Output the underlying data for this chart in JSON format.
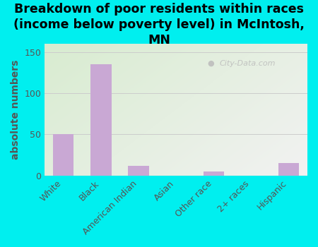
{
  "categories": [
    "White",
    "Black",
    "American Indian",
    "Asian",
    "Other race",
    "2+ races",
    "Hispanic"
  ],
  "values": [
    50,
    135,
    12,
    0,
    5,
    0,
    15
  ],
  "bar_color": "#c9a8d4",
  "background_color": "#00efef",
  "plot_bg_top_left": "#d8ecd0",
  "plot_bg_bottom_right": "#f0f0f0",
  "title": "Breakdown of poor residents within races\n(income below poverty level) in McIntosh,\nMN",
  "ylabel": "absolute numbers",
  "ylim": [
    0,
    160
  ],
  "yticks": [
    0,
    50,
    100,
    150
  ],
  "watermark": "City-Data.com",
  "title_fontsize": 12.5,
  "ylabel_fontsize": 10,
  "tick_fontsize": 9,
  "ylabel_color": "#555555",
  "grid_color": "#cccccc",
  "tick_color": "#555555"
}
